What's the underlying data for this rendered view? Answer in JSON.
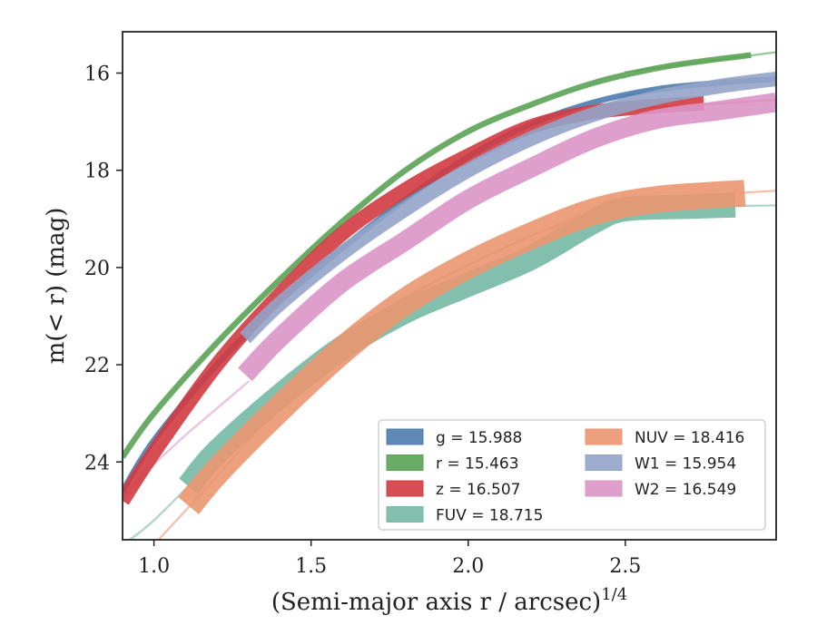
{
  "chart_data": {
    "type": "line",
    "title": "",
    "xlabel": "(Semi-major axis r / arcsec)",
    "xlabel_sup": "1/4",
    "ylabel": "m(< r) (mag)",
    "xlim": [
      0.9,
      2.98
    ],
    "ylim": [
      25.6,
      15.15
    ],
    "y_inverted": true,
    "x_ticks": [
      "1.0",
      "1.5",
      "2.0",
      "2.5"
    ],
    "x_tick_values": [
      1.0,
      1.5,
      2.0,
      2.5
    ],
    "y_ticks": [
      "16",
      "18",
      "20",
      "22",
      "24"
    ],
    "y_tick_values": [
      16,
      18,
      20,
      22,
      24
    ],
    "grid": false,
    "legend_position": "lower-right",
    "series": [
      {
        "name": "g",
        "legend_label": "g = 15.988",
        "color": "#4c7caf",
        "band_width": 0.12,
        "data": [
          [
            0.9,
            24.6
          ],
          [
            1.0,
            23.55
          ],
          [
            1.2,
            22.0
          ],
          [
            1.4,
            20.7
          ],
          [
            1.6,
            19.6
          ],
          [
            1.8,
            18.6
          ],
          [
            2.0,
            17.72
          ],
          [
            2.2,
            17.05
          ],
          [
            2.4,
            16.6
          ],
          [
            2.6,
            16.33
          ],
          [
            2.8,
            16.2
          ],
          [
            2.98,
            16.12
          ]
        ],
        "model": [
          [
            2.5,
            16.45
          ],
          [
            2.98,
            16.1
          ]
        ]
      },
      {
        "name": "r",
        "legend_label": "r = 15.463",
        "color": "#5aa354",
        "band_width": 0.12,
        "data": [
          [
            0.9,
            23.9
          ],
          [
            1.0,
            23.0
          ],
          [
            1.2,
            21.55
          ],
          [
            1.4,
            20.25
          ],
          [
            1.6,
            19.05
          ],
          [
            1.8,
            18.0
          ],
          [
            2.0,
            17.2
          ],
          [
            2.2,
            16.65
          ],
          [
            2.4,
            16.2
          ],
          [
            2.6,
            15.9
          ],
          [
            2.75,
            15.75
          ],
          [
            2.9,
            15.63
          ]
        ],
        "model": [
          [
            2.5,
            15.98
          ],
          [
            2.98,
            15.57
          ]
        ]
      },
      {
        "name": "z",
        "legend_label": "z = 16.507",
        "color": "#d13b40",
        "band_width": 0.3,
        "data": [
          [
            0.9,
            24.8
          ],
          [
            1.0,
            23.8
          ],
          [
            1.2,
            22.0
          ],
          [
            1.4,
            20.55
          ],
          [
            1.6,
            19.3
          ],
          [
            1.8,
            18.4
          ],
          [
            2.0,
            17.7
          ],
          [
            2.2,
            17.1
          ],
          [
            2.4,
            16.8
          ],
          [
            2.6,
            16.68
          ],
          [
            2.75,
            16.62
          ]
        ],
        "model": [
          [
            2.5,
            16.75
          ],
          [
            2.98,
            16.55
          ]
        ]
      },
      {
        "name": "FUV",
        "legend_label": "FUV = 18.715",
        "color": "#74b8a4",
        "band_width": 0.5,
        "data": [
          [
            1.11,
            24.5
          ],
          [
            1.2,
            23.8
          ],
          [
            1.4,
            22.65
          ],
          [
            1.6,
            21.65
          ],
          [
            1.8,
            20.9
          ],
          [
            2.0,
            20.35
          ],
          [
            2.2,
            19.8
          ],
          [
            2.4,
            19.05
          ],
          [
            2.5,
            18.8
          ],
          [
            2.7,
            18.75
          ],
          [
            2.85,
            18.72
          ]
        ],
        "model": [
          [
            0.9,
            25.7
          ],
          [
            1.0,
            25.2
          ],
          [
            1.2,
            23.9
          ],
          [
            1.4,
            22.6
          ],
          [
            1.6,
            21.5
          ],
          [
            1.8,
            20.6
          ],
          [
            2.0,
            19.95
          ],
          [
            2.2,
            19.35
          ],
          [
            2.4,
            18.95
          ],
          [
            2.6,
            18.78
          ],
          [
            2.98,
            18.72
          ]
        ]
      },
      {
        "name": "NUV",
        "legend_label": "NUV = 18.416",
        "color": "#ea9670",
        "band_width": 0.55,
        "data": [
          [
            1.11,
            24.9
          ],
          [
            1.2,
            24.2
          ],
          [
            1.4,
            22.9
          ],
          [
            1.6,
            21.7
          ],
          [
            1.8,
            20.7
          ],
          [
            2.0,
            19.95
          ],
          [
            2.2,
            19.35
          ],
          [
            2.4,
            18.85
          ],
          [
            2.6,
            18.6
          ],
          [
            2.88,
            18.47
          ]
        ],
        "model": [
          [
            1.0,
            25.7
          ],
          [
            1.2,
            24.3
          ],
          [
            1.4,
            22.85
          ],
          [
            1.6,
            21.65
          ],
          [
            1.8,
            20.65
          ],
          [
            2.0,
            19.95
          ],
          [
            2.2,
            19.35
          ],
          [
            2.4,
            18.85
          ],
          [
            2.6,
            18.58
          ],
          [
            2.98,
            18.42
          ]
        ]
      },
      {
        "name": "W1",
        "legend_label": "W1 = 15.954",
        "color": "#93a4c8",
        "band_width": 0.3,
        "data": [
          [
            1.29,
            21.45
          ],
          [
            1.4,
            20.75
          ],
          [
            1.6,
            19.7
          ],
          [
            1.8,
            18.8
          ],
          [
            2.0,
            18.0
          ],
          [
            2.2,
            17.35
          ],
          [
            2.4,
            16.85
          ],
          [
            2.6,
            16.5
          ],
          [
            2.8,
            16.27
          ],
          [
            2.98,
            16.12
          ]
        ],
        "model": []
      },
      {
        "name": "W2",
        "legend_label": "W2 = 16.549",
        "color": "#dc95c6",
        "band_width": 0.4,
        "data": [
          [
            1.29,
            22.2
          ],
          [
            1.4,
            21.45
          ],
          [
            1.6,
            20.3
          ],
          [
            1.8,
            19.45
          ],
          [
            2.0,
            18.6
          ],
          [
            2.2,
            17.95
          ],
          [
            2.4,
            17.35
          ],
          [
            2.6,
            16.95
          ],
          [
            2.8,
            16.77
          ],
          [
            2.98,
            16.6
          ]
        ],
        "model": [
          [
            0.9,
            24.7
          ],
          [
            1.0,
            24.05
          ],
          [
            1.1,
            23.45
          ],
          [
            1.2,
            22.9
          ],
          [
            1.3,
            22.35
          ]
        ]
      }
    ]
  }
}
